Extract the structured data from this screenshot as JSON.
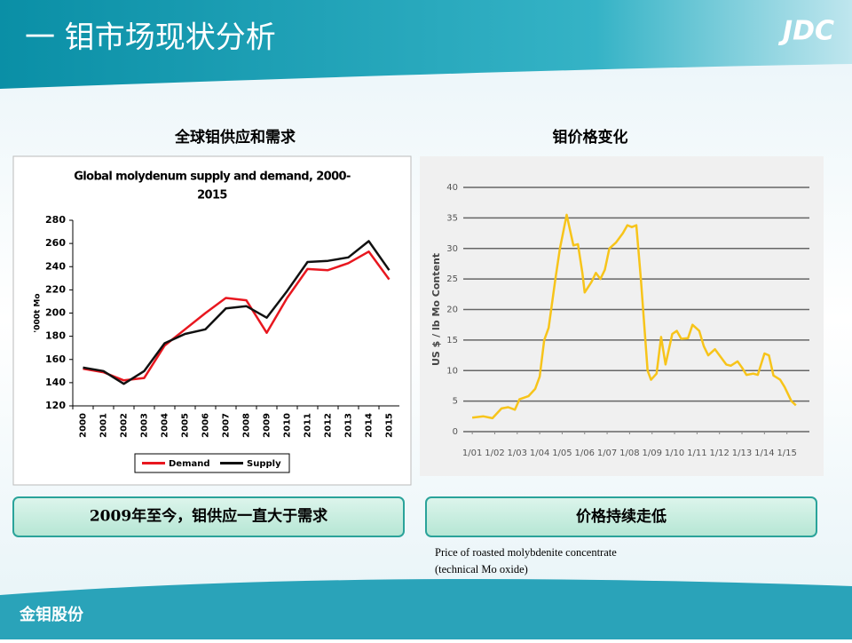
{
  "header": {
    "title": "一 钼市场现状分析",
    "logo": "JDC"
  },
  "panels": [
    {
      "heading": "全球钼供应和需求",
      "caption": "2009年至今，钼供应一直大于需求"
    },
    {
      "heading": "钼价格变化",
      "caption": "价格持续走低",
      "note": [
        "Price of roasted molybdenite concentrate",
        "(technical Mo oxide)"
      ]
    }
  ],
  "footer": {
    "brand": "金钼股份"
  },
  "chart_data": [
    {
      "type": "line",
      "title": [
        "Global molydenum supply and demand, 2000-",
        "2015"
      ],
      "y_label": "'000t Mo",
      "categories": [
        "2000",
        "2001",
        "2002",
        "2003",
        "2004",
        "2005",
        "2006",
        "2007",
        "2008",
        "2009",
        "2010",
        "2011",
        "2012",
        "2013",
        "2014",
        "2015"
      ],
      "series": [
        {
          "name": "Demand",
          "color": "#e8171f",
          "values": [
            152,
            149,
            142,
            144,
            172,
            186,
            200,
            213,
            211,
            183,
            213,
            238,
            237,
            243,
            253,
            229
          ]
        },
        {
          "name": "Supply",
          "color": "#111111",
          "values": [
            153,
            150,
            139,
            150,
            174,
            182,
            186,
            204,
            206,
            196,
            219,
            244,
            245,
            248,
            262,
            237
          ]
        }
      ],
      "ylim": [
        120,
        280
      ],
      "yticks": [
        120,
        140,
        160,
        180,
        200,
        220,
        240,
        260,
        280
      ],
      "grid": false,
      "legend": "bottom"
    },
    {
      "type": "line",
      "y_label": "US $ / lb Mo Content",
      "color": "#f7c41a",
      "x": [
        2001.0,
        2001.5,
        2001.9,
        2002.3,
        2002.6,
        2002.9,
        2003.1,
        2003.5,
        2003.8,
        2004.0,
        2004.2,
        2004.4,
        2004.7,
        2004.9,
        2005.2,
        2005.5,
        2005.7,
        2005.9,
        2006.0,
        2006.3,
        2006.5,
        2006.7,
        2006.9,
        2007.1,
        2007.4,
        2007.7,
        2007.9,
        2008.1,
        2008.3,
        2008.5,
        2008.8,
        2008.95,
        2009.2,
        2009.4,
        2009.6,
        2009.9,
        2010.1,
        2010.3,
        2010.6,
        2010.8,
        2011.1,
        2011.3,
        2011.5,
        2011.8,
        2012.0,
        2012.3,
        2012.5,
        2012.8,
        2013.0,
        2013.2,
        2013.5,
        2013.7,
        2014.0,
        2014.2,
        2014.4,
        2014.7,
        2014.9,
        2015.2,
        2015.4
      ],
      "values": [
        2.3,
        2.5,
        2.2,
        3.8,
        4.0,
        3.6,
        5.3,
        5.8,
        7.0,
        9,
        15,
        17,
        25,
        30,
        35.5,
        30.5,
        30.7,
        26,
        22.8,
        24.5,
        26,
        25,
        26.5,
        30,
        31,
        32.5,
        33.8,
        33.5,
        33.8,
        25,
        10,
        8.5,
        9.5,
        15.5,
        11,
        16,
        16.5,
        15.2,
        15.3,
        17.5,
        16.5,
        14,
        12.5,
        13.5,
        12.5,
        11,
        10.8,
        11.5,
        10.5,
        9.3,
        9.5,
        9.3,
        12.8,
        12.5,
        9.2,
        8.5,
        7.3,
        5,
        4.3
      ],
      "xlim": [
        2000.6,
        2016.0
      ],
      "xticks": [
        {
          "value": 2001,
          "label": "1/01"
        },
        {
          "value": 2002,
          "label": "1/02"
        },
        {
          "value": 2003,
          "label": "1/03"
        },
        {
          "value": 2004,
          "label": "1/04"
        },
        {
          "value": 2005,
          "label": "1/05"
        },
        {
          "value": 2006,
          "label": "1/06"
        },
        {
          "value": 2007,
          "label": "1/07"
        },
        {
          "value": 2008,
          "label": "1/08"
        },
        {
          "value": 2009,
          "label": "1/09"
        },
        {
          "value": 2010,
          "label": "1/10"
        },
        {
          "value": 2011,
          "label": "1/11"
        },
        {
          "value": 2012,
          "label": "1/12"
        },
        {
          "value": 2013,
          "label": "1/13"
        },
        {
          "value": 2014,
          "label": "1/14"
        },
        {
          "value": 2015,
          "label": "1/15"
        }
      ],
      "ylim": [
        0,
        40
      ],
      "yticks": [
        0,
        5,
        10,
        15,
        20,
        25,
        30,
        35,
        40
      ],
      "grid": true
    }
  ]
}
